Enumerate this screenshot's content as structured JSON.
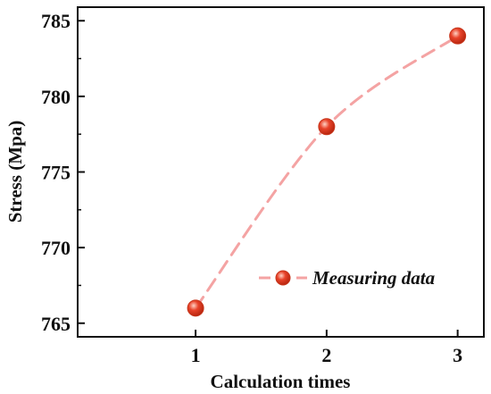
{
  "colors": {
    "line": "#f4a3a3",
    "marker": "#e8432a",
    "marker_highlight": "#ffd2c4",
    "axis": "#111111"
  },
  "chart_data": {
    "type": "line",
    "xlabel": "Calculation times",
    "ylabel": "Stress (Mpa)",
    "x": [
      1,
      2,
      3
    ],
    "xticks": [
      "1",
      "2",
      "3"
    ],
    "xlim": [
      0.1,
      3.2
    ],
    "ylim": [
      764.1,
      785.9
    ],
    "yticks": [
      765,
      770,
      775,
      780,
      785
    ],
    "ytick_labels": [
      "765",
      "770",
      "775",
      "780",
      "785"
    ],
    "series": [
      {
        "name": "Measuring data",
        "values": [
          766,
          778,
          784
        ],
        "line_style": "dashed",
        "smooth": true,
        "marker": "sphere"
      }
    ],
    "legend_position": "bottom-right",
    "grid": false
  }
}
